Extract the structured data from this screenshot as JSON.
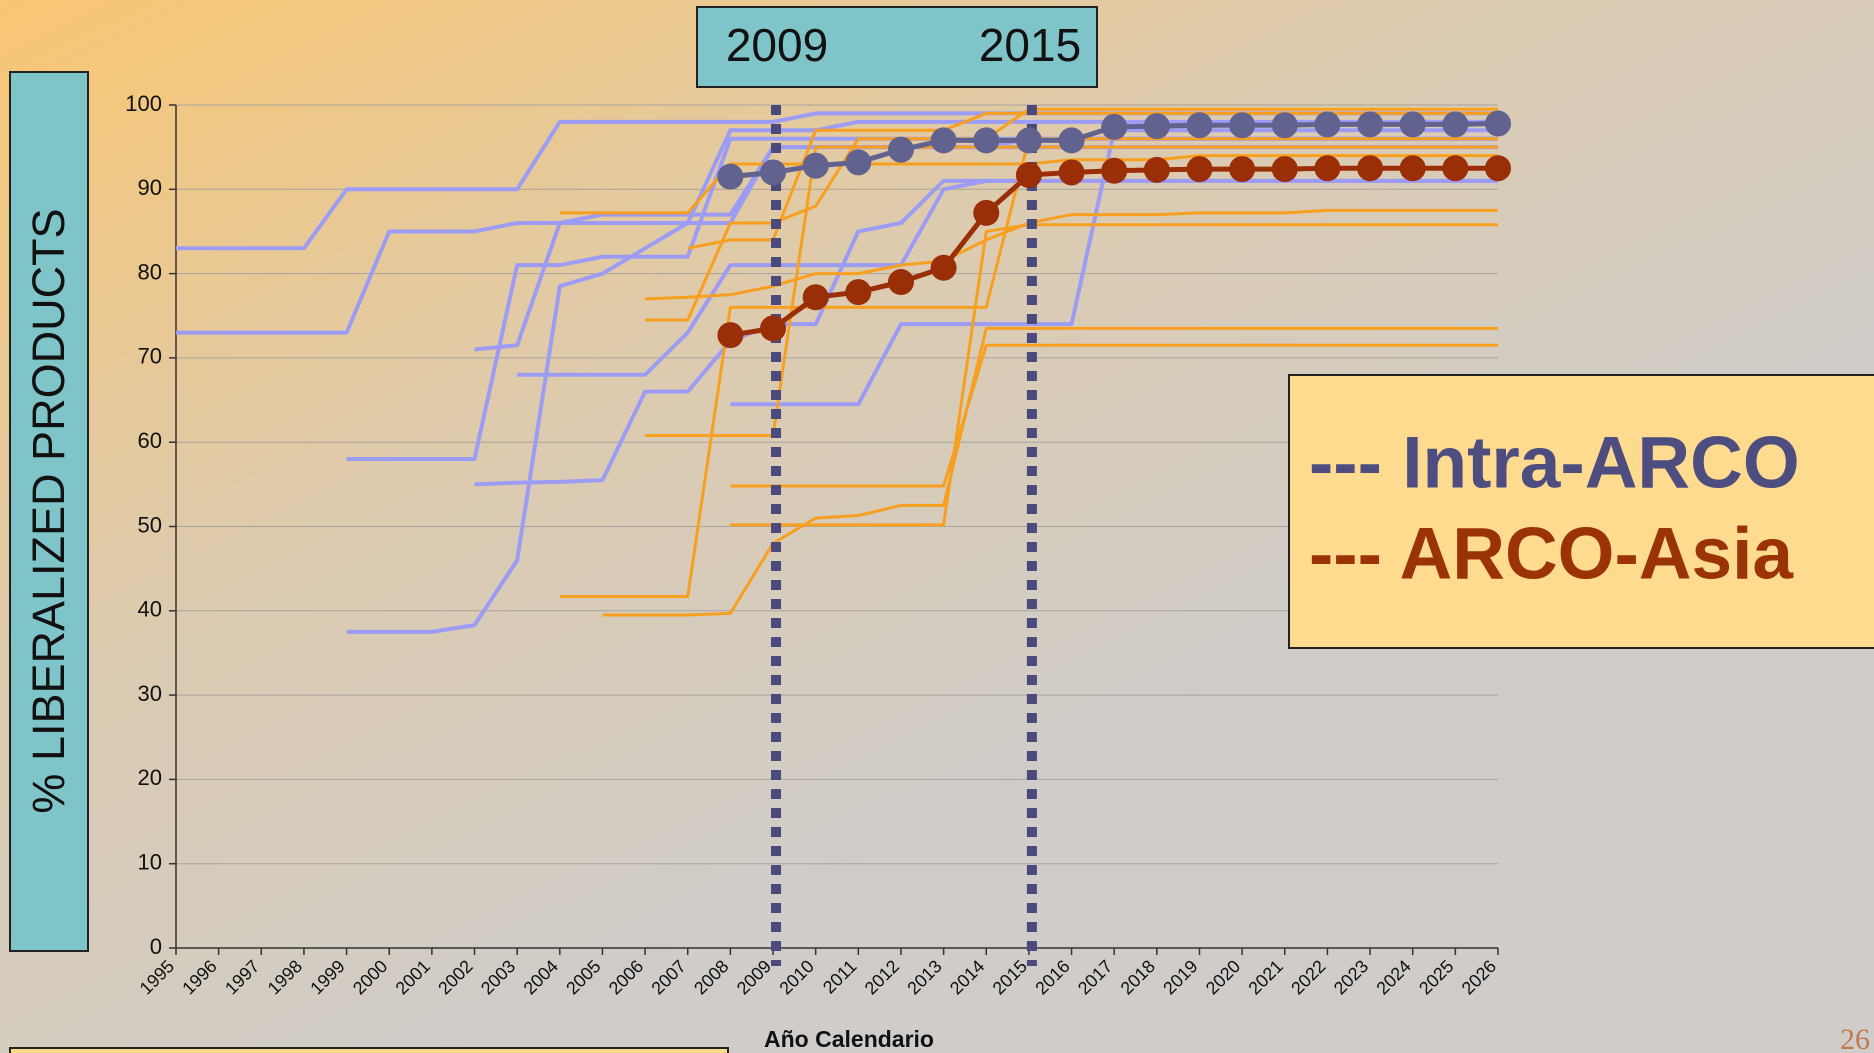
{
  "chart_data": {
    "type": "line",
    "ylabel": "% LIBERALIZED PRODUCTS",
    "xlabel": "Año Calendario",
    "page_number": "26",
    "reference_lines": [
      "2009",
      "2015"
    ],
    "categories": [
      "1995",
      "1996",
      "1997",
      "1998",
      "1999",
      "2000",
      "2001",
      "2002",
      "2003",
      "2004",
      "2005",
      "2006",
      "2007",
      "2008",
      "2009",
      "2010",
      "2011",
      "2012",
      "2013",
      "2014",
      "2015",
      "2016",
      "2017",
      "2018",
      "2019",
      "2020",
      "2021",
      "2022",
      "2023",
      "2024",
      "2025",
      "2026"
    ],
    "ylim": [
      0,
      100
    ],
    "yticks": [
      0,
      10,
      20,
      30,
      40,
      50,
      60,
      70,
      80,
      90,
      100
    ],
    "grid": true,
    "series": [
      {
        "color": "#9c9cf5",
        "values": [
          83,
          83,
          83,
          83,
          90,
          90,
          90,
          90,
          90,
          98,
          98,
          98,
          98,
          98,
          98,
          99,
          99,
          99,
          99,
          99,
          99,
          99,
          99,
          99,
          99,
          99,
          99,
          99,
          99,
          99,
          99,
          99
        ]
      },
      {
        "color": "#9c9cf5",
        "values": [
          73,
          73,
          73,
          73,
          73,
          85,
          85,
          85,
          86,
          86,
          87,
          87,
          87,
          87,
          95,
          95,
          95,
          95,
          95,
          95,
          95,
          95,
          95,
          95,
          95,
          95,
          95,
          95,
          95,
          95,
          95,
          95
        ]
      },
      {
        "color": "#9c9cf5",
        "values": [
          null,
          null,
          null,
          null,
          58,
          58,
          58,
          58,
          81,
          81,
          82,
          82,
          82,
          96,
          96,
          96,
          96,
          96,
          96,
          96,
          96,
          96,
          96,
          96,
          96,
          96,
          96,
          96,
          96,
          96,
          96,
          96
        ]
      },
      {
        "color": "#9c9cf5",
        "values": [
          null,
          null,
          null,
          null,
          37.5,
          37.5,
          37.5,
          38.3,
          46,
          78.5,
          80,
          83,
          86,
          97,
          97,
          97,
          98,
          98,
          98,
          98,
          98,
          98,
          98,
          98,
          98,
          98,
          98,
          98,
          98,
          98,
          98,
          98
        ]
      },
      {
        "color": "#9c9cf5",
        "values": [
          null,
          null,
          null,
          null,
          null,
          null,
          null,
          55,
          55.2,
          55.3,
          55.5,
          66,
          66,
          72,
          74,
          74,
          85,
          86,
          91,
          91,
          91,
          91,
          91,
          91,
          91,
          91,
          91,
          91,
          91,
          91,
          91,
          91
        ]
      },
      {
        "color": "#9c9cf5",
        "values": [
          null,
          null,
          null,
          null,
          null,
          null,
          null,
          null,
          68,
          68,
          68,
          68,
          73,
          81,
          81,
          81,
          81,
          81,
          90,
          91,
          91,
          91,
          91,
          91,
          91,
          91,
          91,
          91,
          91,
          91,
          91,
          91
        ]
      },
      {
        "color": "#9c9cf5",
        "values": [
          null,
          null,
          null,
          null,
          null,
          null,
          null,
          null,
          null,
          null,
          null,
          null,
          null,
          64.5,
          64.5,
          64.5,
          64.5,
          74,
          74,
          74,
          74,
          74,
          97,
          97,
          97,
          97,
          97,
          97,
          97,
          97,
          97,
          97
        ]
      },
      {
        "color": "#9c9cf5",
        "values": [
          null,
          null,
          null,
          null,
          null,
          null,
          null,
          71,
          71.5,
          86,
          86,
          86,
          86,
          86,
          95,
          95,
          95,
          95,
          95,
          95,
          96,
          96,
          96,
          96,
          96,
          96,
          96,
          96,
          96,
          96,
          96,
          96
        ]
      },
      {
        "color": "#f7a020",
        "values": [
          null,
          null,
          null,
          null,
          null,
          null,
          null,
          null,
          null,
          41.7,
          41.7,
          41.7,
          41.7,
          76,
          76,
          76,
          76,
          76,
          76,
          76,
          96,
          96,
          96,
          96,
          96,
          96,
          96,
          96,
          96,
          96,
          96,
          96
        ]
      },
      {
        "color": "#f7a020",
        "values": [
          null,
          null,
          null,
          null,
          null,
          null,
          null,
          null,
          null,
          null,
          39.5,
          39.5,
          39.5,
          39.7,
          48,
          51,
          51.3,
          52.5,
          52.5,
          73.5,
          73.5,
          73.5,
          73.5,
          73.5,
          73.5,
          73.5,
          73.5,
          73.5,
          73.5,
          73.5,
          73.5,
          73.5
        ]
      },
      {
        "color": "#f7a020",
        "values": [
          null,
          null,
          null,
          null,
          null,
          null,
          null,
          null,
          null,
          null,
          null,
          60.8,
          60.8,
          60.8,
          60.8,
          95,
          95,
          95,
          95,
          95,
          95,
          95,
          95,
          95,
          95,
          95,
          95,
          95,
          95,
          95,
          95,
          95
        ]
      },
      {
        "color": "#f7a020",
        "values": [
          null,
          null,
          null,
          null,
          null,
          null,
          null,
          null,
          null,
          null,
          null,
          null,
          null,
          54.8,
          54.8,
          54.8,
          54.8,
          54.8,
          54.8,
          71.5,
          71.5,
          71.5,
          71.5,
          71.5,
          71.5,
          71.5,
          71.5,
          71.5,
          71.5,
          71.5,
          71.5,
          71.5
        ]
      },
      {
        "color": "#f7a020",
        "values": [
          null,
          null,
          null,
          null,
          null,
          null,
          null,
          null,
          null,
          null,
          null,
          null,
          null,
          50.2,
          50.2,
          50.2,
          50.2,
          50.2,
          50.2,
          85,
          85.8,
          85.8,
          85.8,
          85.8,
          85.8,
          85.8,
          85.8,
          85.8,
          85.8,
          85.8,
          85.8,
          85.8
        ]
      },
      {
        "color": "#f7a020",
        "values": [
          null,
          null,
          null,
          null,
          null,
          null,
          null,
          null,
          null,
          null,
          null,
          77,
          77.2,
          77.5,
          78.5,
          80,
          80,
          81,
          81.5,
          84,
          86,
          87,
          87,
          87,
          87.2,
          87.2,
          87.2,
          87.5,
          87.5,
          87.5,
          87.5,
          87.5
        ]
      },
      {
        "color": "#f7a020",
        "values": [
          null,
          null,
          null,
          null,
          null,
          null,
          null,
          null,
          null,
          87.2,
          87.2,
          87.2,
          87.2,
          93,
          93,
          93,
          93,
          93,
          93,
          93,
          93,
          93.5,
          93.5,
          93.5,
          94,
          94,
          94,
          94,
          94,
          94,
          94,
          94
        ]
      },
      {
        "color": "#f7a020",
        "values": [
          null,
          null,
          null,
          null,
          null,
          null,
          null,
          null,
          null,
          null,
          null,
          74.5,
          74.5,
          86,
          86,
          88,
          96,
          96,
          96,
          96,
          99.5,
          99.5,
          99.5,
          99.5,
          99.5,
          99.5,
          99.5,
          99.5,
          99.5,
          99.5,
          99.5,
          99.5
        ]
      },
      {
        "color": "#f7a020",
        "values": [
          null,
          null,
          null,
          null,
          null,
          null,
          null,
          null,
          null,
          null,
          null,
          null,
          83,
          84,
          84,
          97,
          97,
          97,
          97,
          99,
          99,
          99,
          99,
          99,
          99,
          99,
          99,
          99,
          99,
          99,
          99,
          99
        ]
      },
      {
        "name": "--- Intra-ARCO",
        "color": "#62628f",
        "values": [
          null,
          null,
          null,
          null,
          null,
          null,
          null,
          null,
          null,
          null,
          null,
          null,
          null,
          91.5,
          92,
          92.8,
          93.2,
          94.7,
          95.8,
          95.8,
          95.8,
          95.8,
          97.4,
          97.5,
          97.6,
          97.6,
          97.6,
          97.7,
          97.7,
          97.7,
          97.7,
          97.8
        ]
      },
      {
        "name": "--- ARCO-Asia",
        "color": "#9a2e06",
        "values": [
          null,
          null,
          null,
          null,
          null,
          null,
          null,
          null,
          null,
          null,
          null,
          null,
          null,
          72.7,
          73.5,
          77.2,
          77.8,
          79,
          80.7,
          87.2,
          91.7,
          92,
          92.2,
          92.3,
          92.4,
          92.4,
          92.4,
          92.5,
          92.5,
          92.5,
          92.5,
          92.5
        ]
      }
    ]
  }
}
